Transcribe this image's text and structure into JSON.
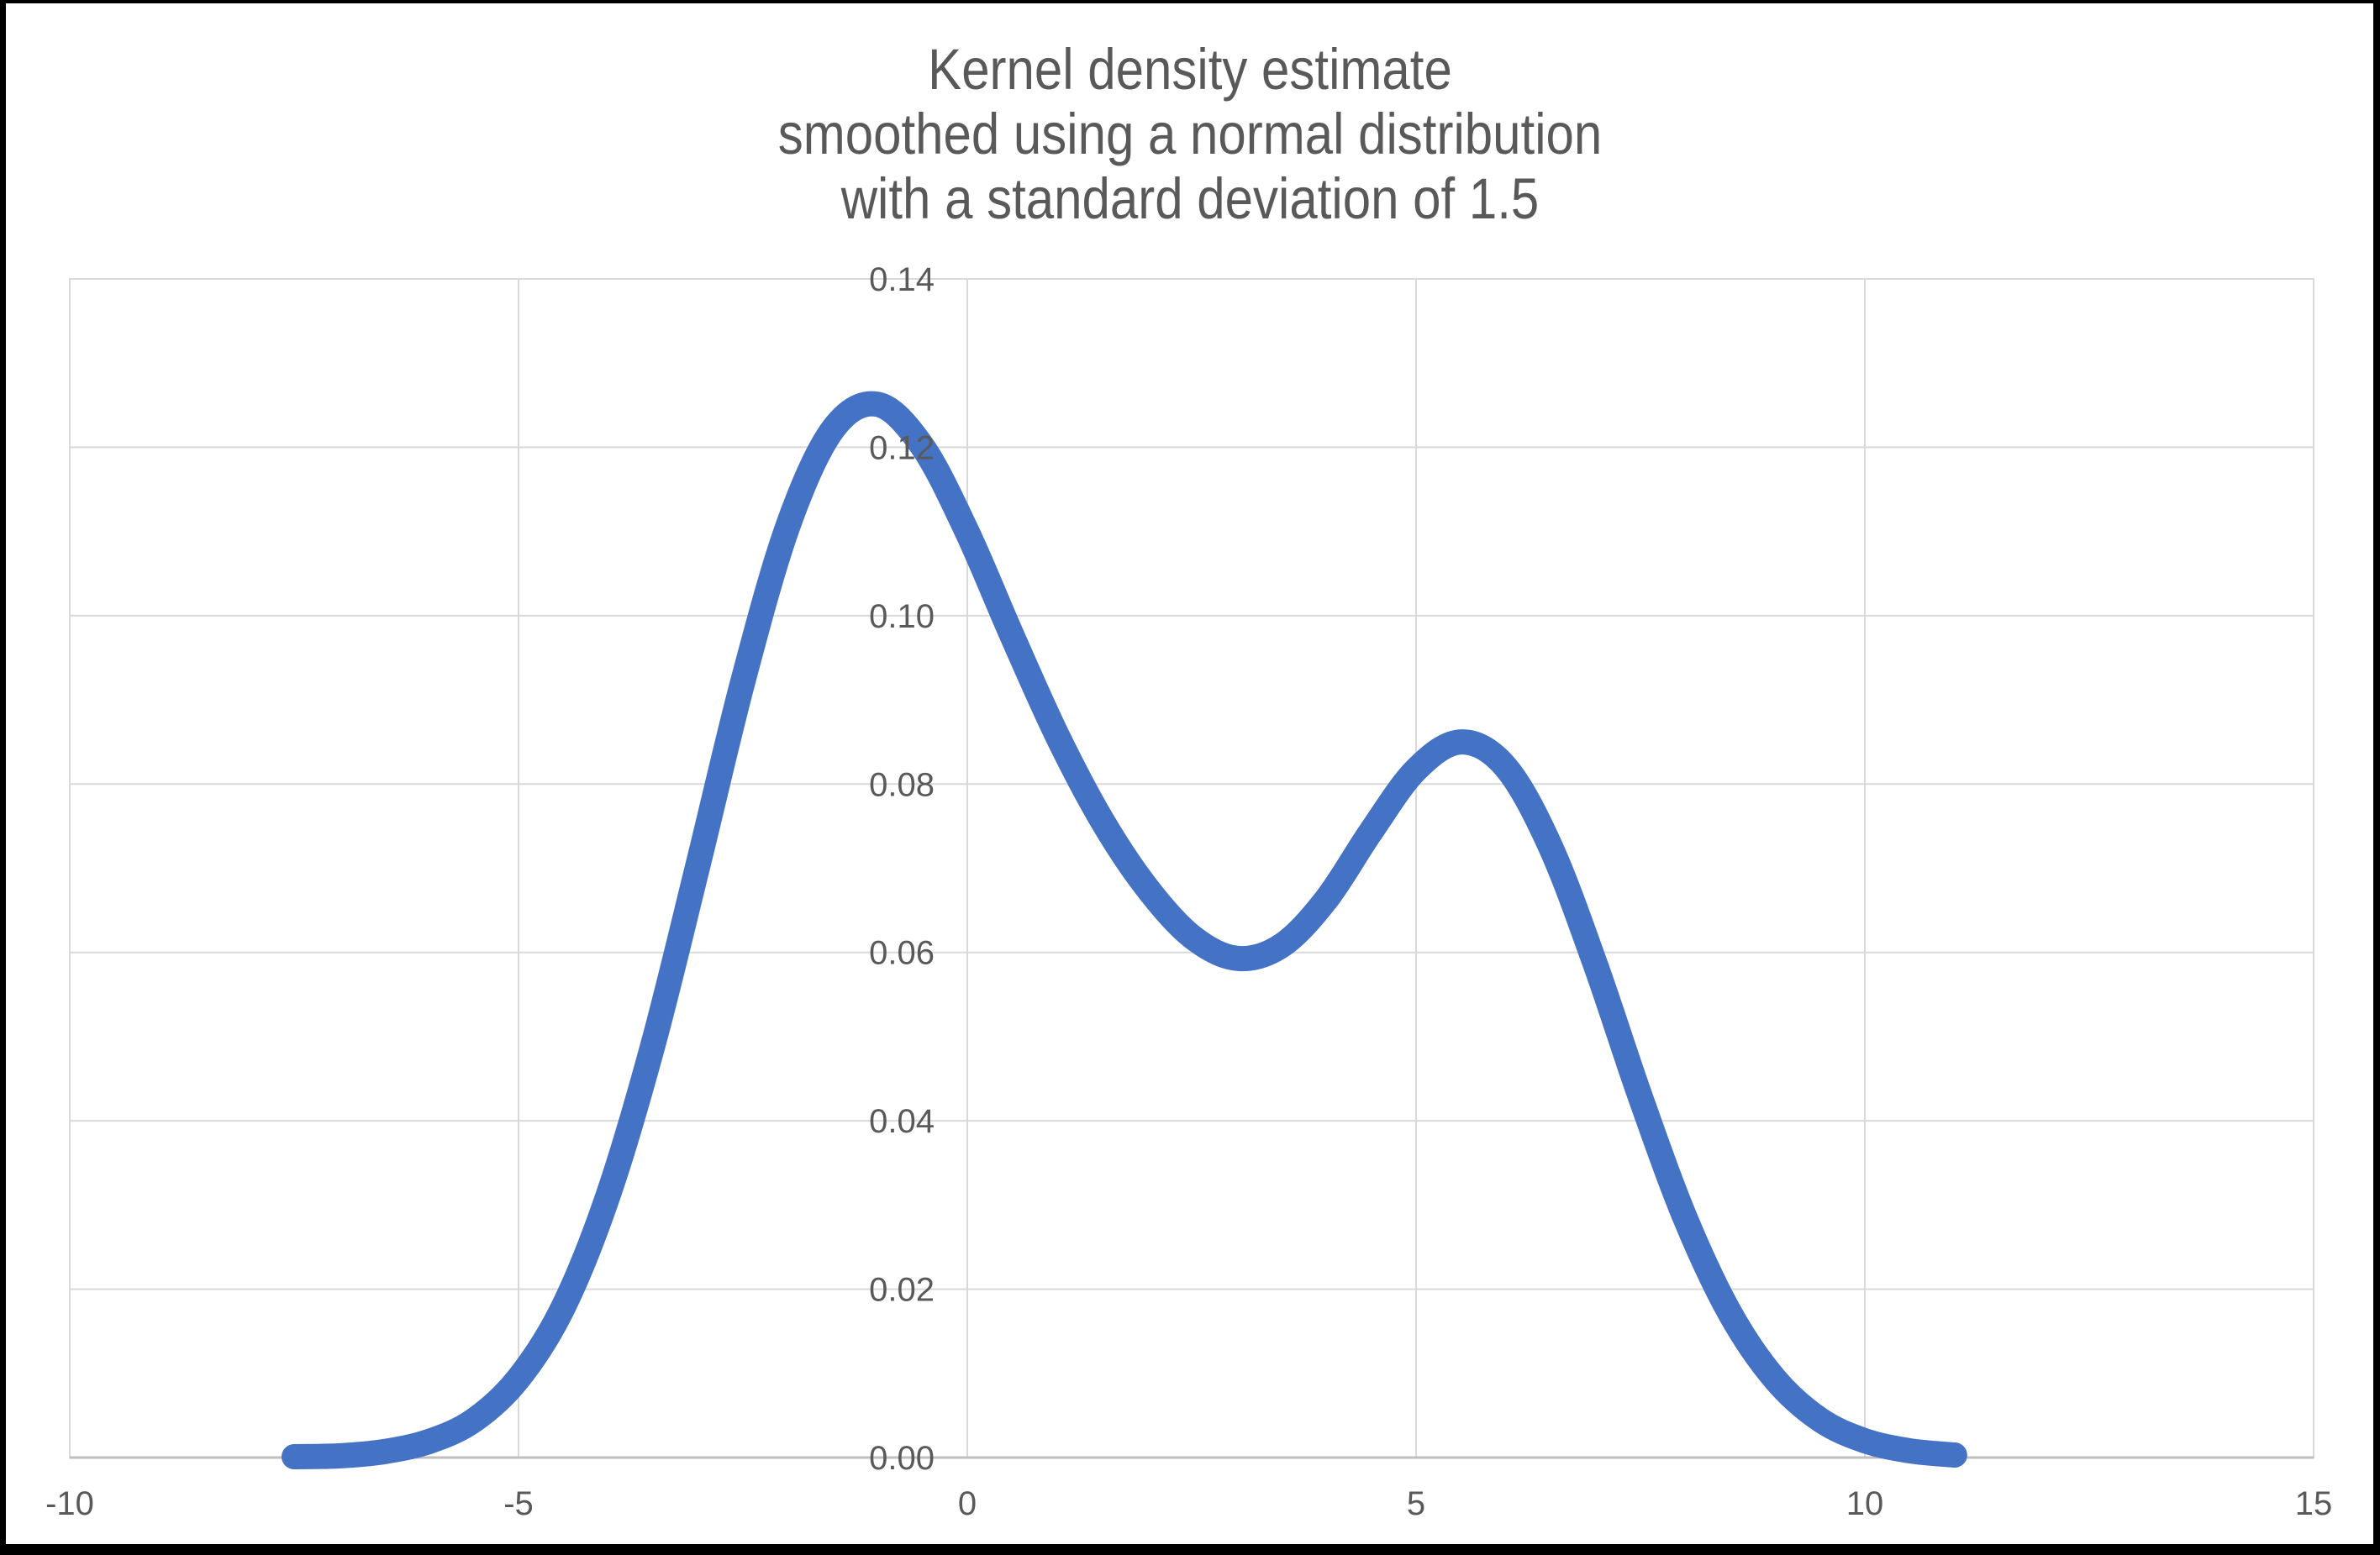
{
  "window": {
    "background": "#FFFFFF",
    "border_color": "#000000"
  },
  "chart_data": {
    "type": "line",
    "title": "Kernel density estimate smoothed using a normal distribution with a standard deviation of 1.5",
    "title_lines": [
      "Kernel density estimate",
      "smoothed using a normal distribution",
      "with a standard deviation of 1.5"
    ],
    "xlabel": "",
    "ylabel": "",
    "xlim": [
      -10,
      15
    ],
    "ylim": [
      0,
      0.14
    ],
    "grid": "on",
    "legend": "none",
    "x_ticks": {
      "values": [
        -10,
        -5,
        0,
        5,
        10,
        15
      ],
      "labels": [
        "-10",
        "-5",
        "0",
        "5",
        "10",
        "15"
      ]
    },
    "y_ticks": {
      "values": [
        0,
        0.02,
        0.04,
        0.06,
        0.08,
        0.1,
        0.12,
        0.14
      ],
      "labels": [
        "0.00",
        "0.02",
        "0.04",
        "0.06",
        "0.08",
        "0.10",
        "0.12",
        "0.14"
      ]
    },
    "style": {
      "title_color": "#595959",
      "tick_label_color": "#595959",
      "gridline_color": "#D9D9D9",
      "plot_border_color": "#D9D9D9",
      "axis_line_color": "#BFBFBF",
      "series_color": "#4472C4"
    },
    "series": [
      {
        "name": "Kernel density estimate",
        "color": "#4472C4",
        "stroke_width": 30,
        "x": [
          -7.5,
          -7.0,
          -6.5,
          -6.0,
          -5.5,
          -5.0,
          -4.5,
          -4.0,
          -3.5,
          -3.0,
          -2.5,
          -2.0,
          -1.5,
          -1.0,
          -0.5,
          0.0,
          0.5,
          1.0,
          1.5,
          2.0,
          2.5,
          3.0,
          3.5,
          4.0,
          4.5,
          5.0,
          5.5,
          6.0,
          6.5,
          7.0,
          7.5,
          8.0,
          8.5,
          9.0,
          9.5,
          10.0,
          10.5,
          11.0
        ],
        "y": [
          0.0001,
          0.0002,
          0.0007,
          0.0019,
          0.0044,
          0.0094,
          0.0179,
          0.0312,
          0.0491,
          0.0704,
          0.0922,
          0.1106,
          0.1221,
          0.1251,
          0.1201,
          0.1099,
          0.0976,
          0.0858,
          0.0757,
          0.0677,
          0.0619,
          0.0593,
          0.0608,
          0.0663,
          0.0744,
          0.0817,
          0.085,
          0.082,
          0.0725,
          0.0585,
          0.0428,
          0.0284,
          0.0171,
          0.0093,
          0.0045,
          0.002,
          0.0008,
          0.0003
        ]
      }
    ]
  }
}
